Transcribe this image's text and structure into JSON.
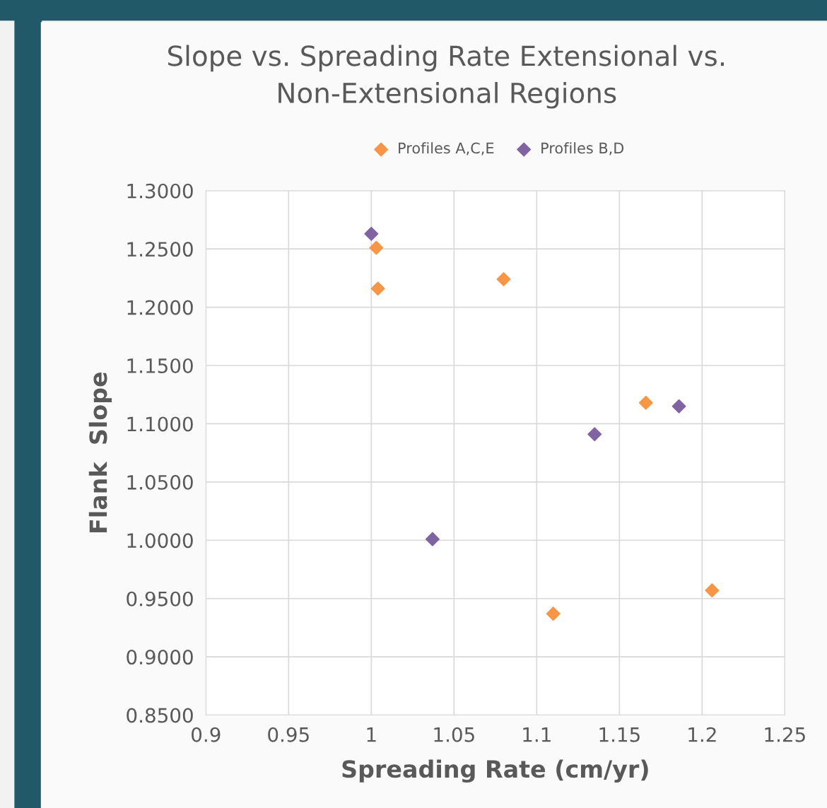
{
  "chart_data": {
    "type": "scatter",
    "title": "Slope vs. Spreading Rate Extensional vs.\nNon-Extensional Regions",
    "xlabel": "Spreading Rate (cm/yr)",
    "ylabel": "Flank  Slope",
    "series": [
      {
        "name": "Profiles A,C,E",
        "color": "#f79646",
        "x": [
          1.003,
          1.004,
          1.08,
          1.11,
          1.166,
          1.206
        ],
        "values": [
          1.251,
          1.216,
          1.224,
          0.937,
          1.118,
          0.957
        ]
      },
      {
        "name": "Profiles B,D",
        "color": "#8064a2",
        "x": [
          1.0,
          1.037,
          1.135,
          1.186
        ],
        "values": [
          1.263,
          1.001,
          1.091,
          1.115
        ]
      }
    ],
    "xlim": [
      0.9,
      1.25
    ],
    "xticks": [
      0.9,
      0.95,
      1,
      1.05,
      1.1,
      1.15,
      1.2,
      1.25
    ],
    "ylim": [
      0.85,
      1.3
    ],
    "yticks": [
      {
        "value": 0.85,
        "label": "0.8500"
      },
      {
        "value": 0.9,
        "label": "0.9000"
      },
      {
        "value": 0.95,
        "label": "0.9500"
      },
      {
        "value": 1.0,
        "label": "1.0000"
      },
      {
        "value": 1.05,
        "label": "1.0500"
      },
      {
        "value": 1.1,
        "label": "1.1000"
      },
      {
        "value": 1.15,
        "label": "1.1500"
      },
      {
        "value": 1.2,
        "label": "1.2000"
      },
      {
        "value": 1.25,
        "label": "1.2500"
      },
      {
        "value": 1.3,
        "label": "1.3000"
      }
    ],
    "grid": true,
    "legend": "top",
    "marker": "diamond"
  }
}
